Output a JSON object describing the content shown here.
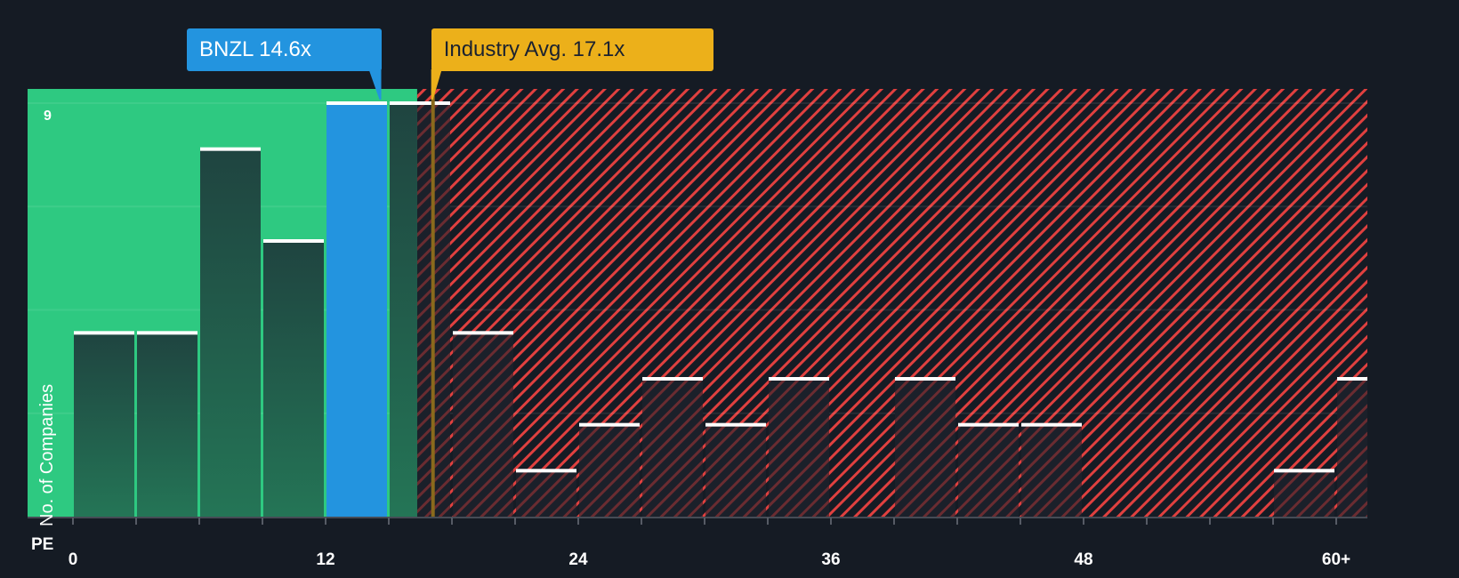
{
  "chart_data": {
    "type": "bar",
    "title": "",
    "xlabel": "PE",
    "ylabel": "No. of Companies",
    "x_ticks": [
      "0",
      "12",
      "24",
      "36",
      "48",
      "60+"
    ],
    "x_tick_values": [
      0,
      12,
      24,
      36,
      48,
      60
    ],
    "y_max_label": "9",
    "ylim": [
      0,
      9
    ],
    "bin_width": 3,
    "categories": [
      "0-3",
      "3-6",
      "6-9",
      "9-12",
      "12-15",
      "15-18",
      "18-21",
      "21-24",
      "24-27",
      "27-30",
      "30-33",
      "33-36",
      "36-39",
      "39-42",
      "42-45",
      "45-48",
      "48-51",
      "51-54",
      "54-57",
      "57-60",
      "60+"
    ],
    "values": [
      4,
      4,
      8,
      6,
      9,
      9,
      4,
      1,
      2,
      3,
      2,
      3,
      0,
      3,
      2,
      2,
      0,
      0,
      0,
      1,
      3
    ],
    "highlight_bin": "12-15",
    "company": {
      "ticker": "BNZL",
      "pe": 14.6,
      "label": "BNZL 14.6x"
    },
    "industry_avg": {
      "pe": 17.1,
      "label": "Industry Avg. 17.1x"
    },
    "undervalued_region_end": 16.35,
    "grid": true,
    "colors": {
      "background": "#151b24",
      "undervalued_region": "#2ec981",
      "overvalued_hatch": "#e0403f",
      "company": "#2394df",
      "industry": "#ecb01a",
      "bar_in_green": "#1f4a40",
      "bar_in_red": "#1c212c",
      "bar_top": "#ffffff"
    }
  }
}
